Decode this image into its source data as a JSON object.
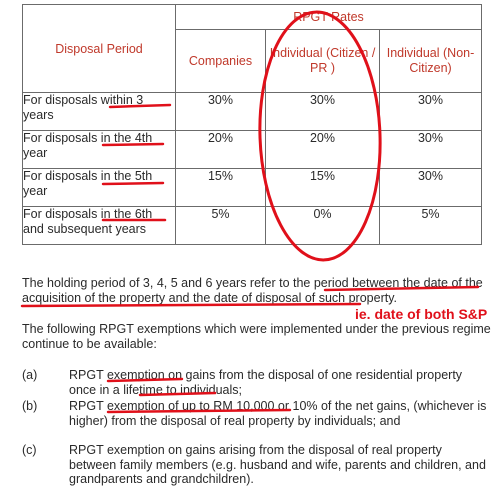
{
  "table": {
    "header_left": "Disposal Period",
    "header_group": "RPGT Rates",
    "columns": [
      "Companies",
      "Individual (Citizen / PR )",
      "Individual (Non-Citizen)"
    ],
    "rows": [
      {
        "period": "For disposals within 3 years",
        "companies": "30%",
        "citizen": "30%",
        "non_citizen": "30%"
      },
      {
        "period": "For disposals in the 4th year",
        "companies": "20%",
        "citizen": "20%",
        "non_citizen": "30%"
      },
      {
        "period": "For disposals in the 5th year",
        "companies": "15%",
        "citizen": "15%",
        "non_citizen": "30%"
      },
      {
        "period": "For disposals in the 6th and subsequent years",
        "companies": "5%",
        "citizen": "0%",
        "non_citizen": "5%"
      }
    ]
  },
  "para1": "The holding period of 3, 4, 5 and 6 years refer to the period between the date of the acquisition of the property and the date of disposal of such property.",
  "annotation": "ie. date of both S&P",
  "para2": "The following RPGT exemptions which were implemented under the previous regime continue to be available:",
  "exemptions": [
    {
      "label": "(a)",
      "text": "RPGT exemption on gains from the disposal of one residential property once in a lifetime to individuals;"
    },
    {
      "label": "(b)",
      "text": "RPGT exemption of up to RM 10,000 or 10% of the net gains, (whichever is higher) from the disposal of real property by individuals; and"
    },
    {
      "label": "(c)",
      "text": "RPGT exemption on gains arising from the disposal of real property between family members (e.g. husband and wife, parents and children, and grandparents and grandchildren)."
    }
  ],
  "colors": {
    "header_text": "#c0392b",
    "markup": "#e0101a"
  }
}
